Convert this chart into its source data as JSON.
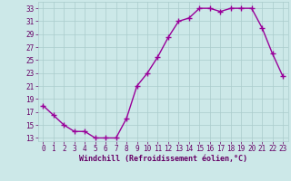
{
  "x": [
    0,
    1,
    2,
    3,
    4,
    5,
    6,
    7,
    8,
    9,
    10,
    11,
    12,
    13,
    14,
    15,
    16,
    17,
    18,
    19,
    20,
    21,
    22,
    23
  ],
  "y": [
    18,
    16.5,
    15,
    14,
    14,
    13,
    13,
    13,
    16,
    21,
    23,
    25.5,
    28.5,
    31,
    31.5,
    33,
    33,
    32.5,
    33,
    33,
    33,
    30,
    26,
    22.5
  ],
  "line_color": "#990099",
  "marker": "+",
  "bg_color": "#cce8e8",
  "grid_color": "#aacccc",
  "xlabel": "Windchill (Refroidissement éolien,°C)",
  "xlabel_color": "#660066",
  "tick_color": "#660066",
  "ylim": [
    12.5,
    34
  ],
  "yticks": [
    13,
    15,
    17,
    19,
    21,
    23,
    25,
    27,
    29,
    31,
    33
  ],
  "xticks": [
    0,
    1,
    2,
    3,
    4,
    5,
    6,
    7,
    8,
    9,
    10,
    11,
    12,
    13,
    14,
    15,
    16,
    17,
    18,
    19,
    20,
    21,
    22,
    23
  ],
  "line_width": 1.0,
  "marker_size": 4,
  "tick_fontsize": 5.5,
  "xlabel_fontsize": 6.0
}
